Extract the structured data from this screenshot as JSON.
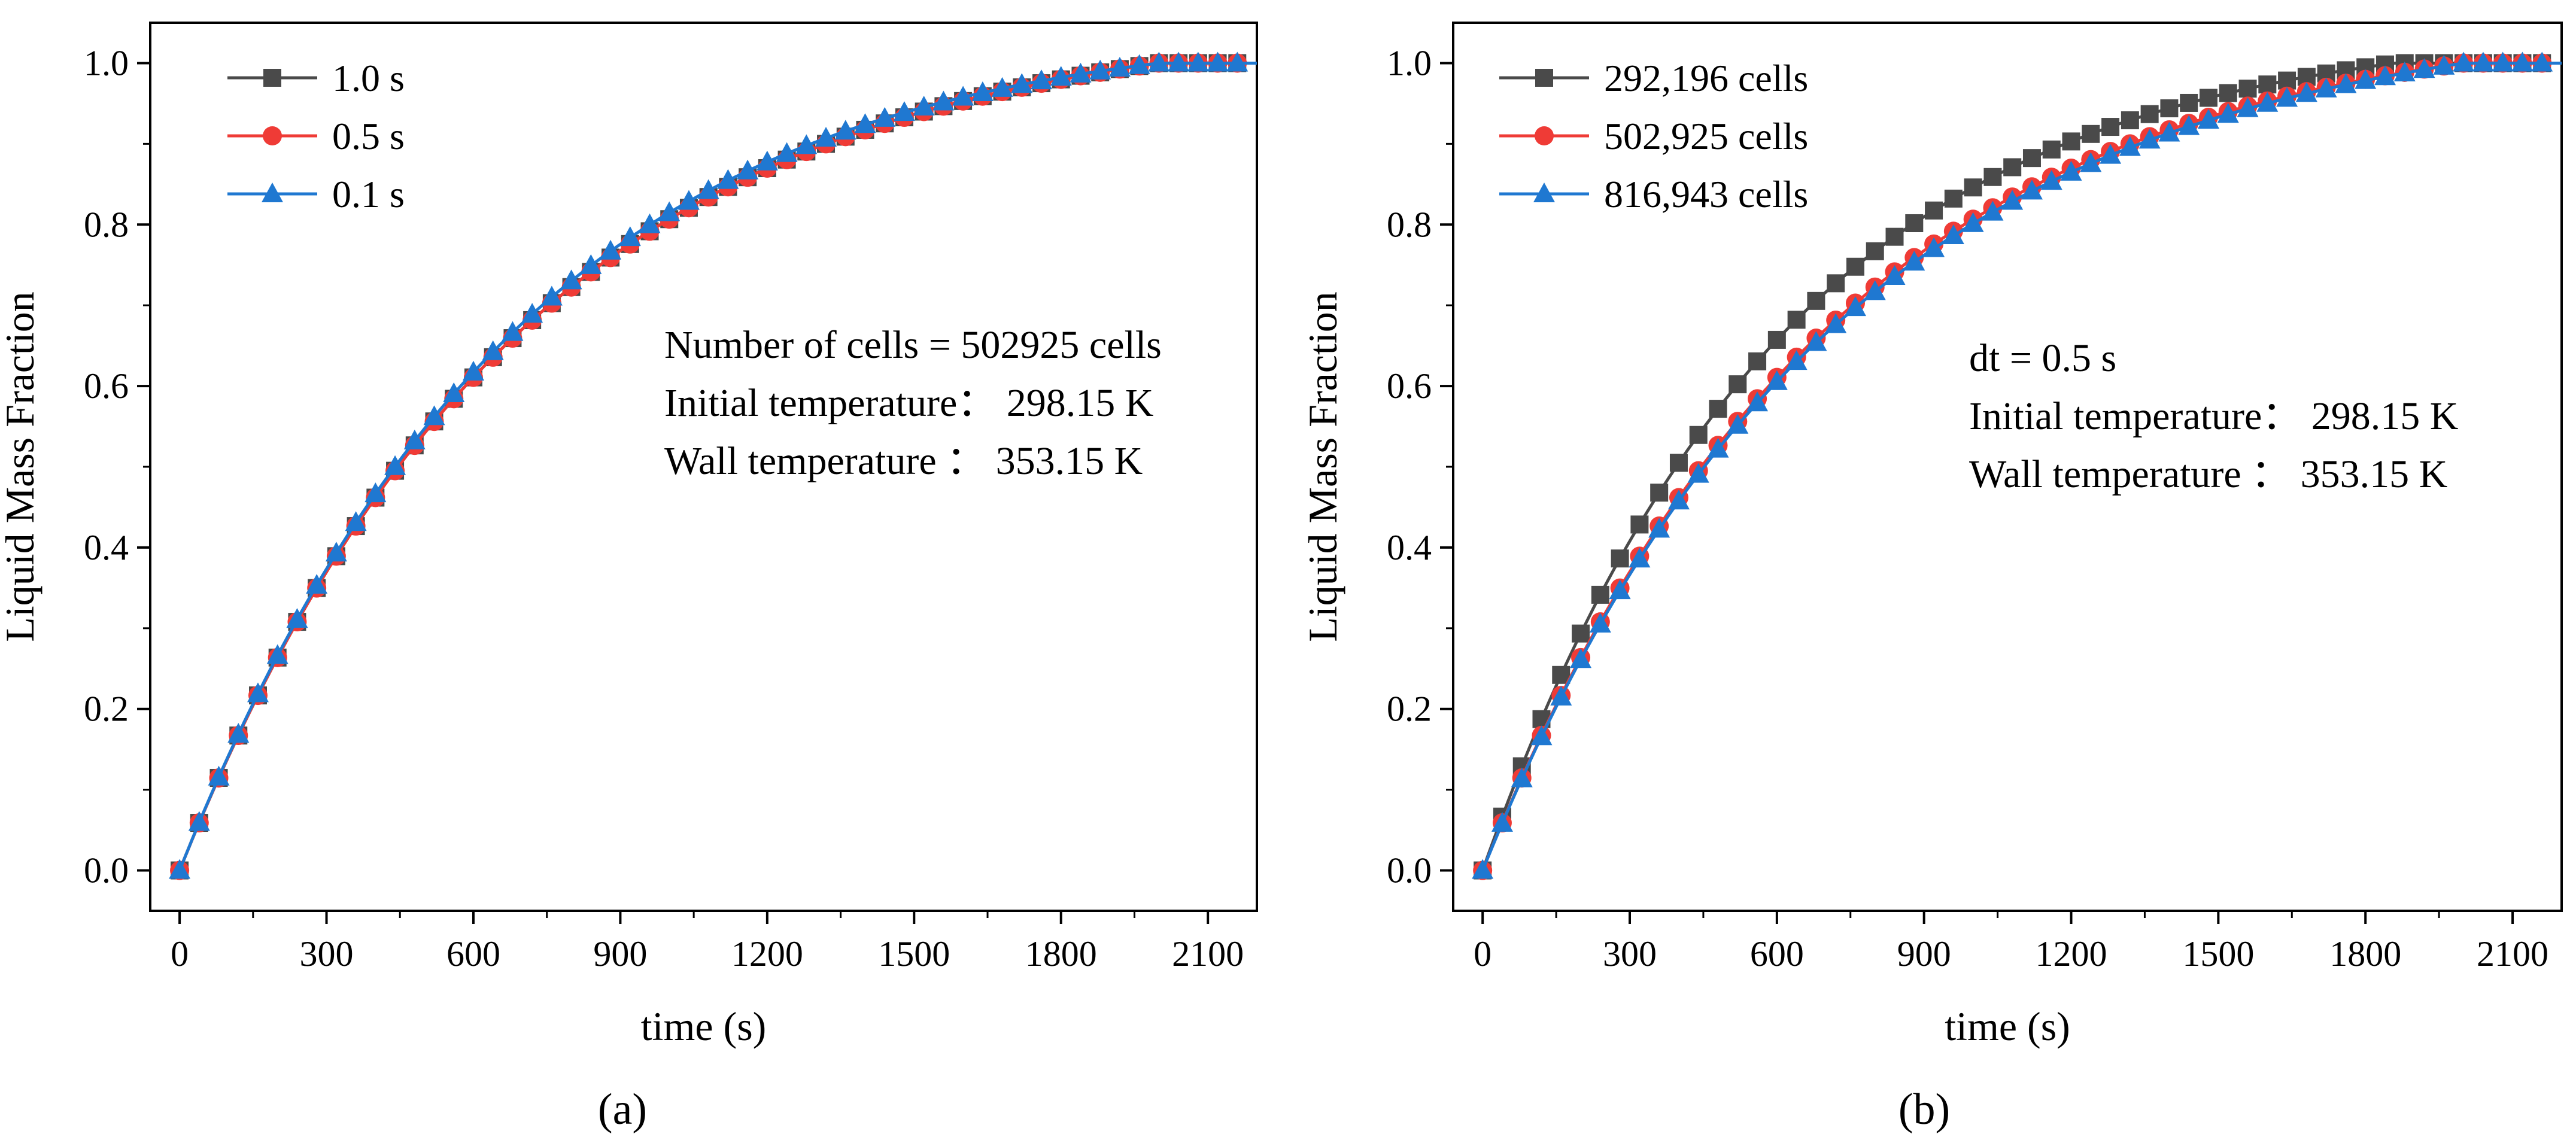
{
  "chart_data": [
    {
      "type": "line",
      "panel_label": "(a)",
      "xlabel": "time (s)",
      "ylabel": "Liquid Mass Fraction",
      "xlim": [
        -60,
        2200
      ],
      "ylim": [
        -0.05,
        1.05
      ],
      "xticks": [
        "0",
        "300",
        "600",
        "900",
        "1200",
        "1500",
        "1800",
        "2100"
      ],
      "yticks": [
        "0.0",
        "0.2",
        "0.4",
        "0.6",
        "0.8",
        "1.0"
      ],
      "legend_position": "top-left",
      "annotations": [
        "Number of cells = 502925 cells",
        "Initial temperature：  298.15 K",
        "Wall temperature ：  353.15 K"
      ],
      "series": [
        {
          "name": "1.0 s",
          "color": "#4a4a4a",
          "marker": "square",
          "tau": 700,
          "end": 2000,
          "offset": 0.0
        },
        {
          "name": "0.5 s",
          "color": "#ef3b36",
          "marker": "circle",
          "tau": 700,
          "end": 2000,
          "offset": 0.0
        },
        {
          "name": "0.1 s",
          "color": "#1f78d1",
          "marker": "triangle",
          "tau": 700,
          "end": 2000,
          "offset": 0.008
        }
      ]
    },
    {
      "type": "line",
      "panel_label": "(b)",
      "xlabel": "time (s)",
      "ylabel": "Liquid Mass Fraction",
      "xlim": [
        -60,
        2200
      ],
      "ylim": [
        -0.05,
        1.05
      ],
      "xticks": [
        "0",
        "300",
        "600",
        "900",
        "1200",
        "1500",
        "1800",
        "2100"
      ],
      "yticks": [
        "0.0",
        "0.2",
        "0.4",
        "0.6",
        "0.8",
        "1.0"
      ],
      "legend_position": "top-left",
      "annotations": [
        "dt = 0.5 s",
        "Initial temperature：  298.15 K",
        "Wall temperature ：  353.15 K"
      ],
      "series": [
        {
          "name": "292,196 cells",
          "color": "#4a4a4a",
          "marker": "square",
          "tau": 610,
          "end": 1860,
          "offset": 0.0
        },
        {
          "name": "502,925 cells",
          "color": "#ef3b36",
          "marker": "circle",
          "tau": 700,
          "end": 2000,
          "offset": 0.0
        },
        {
          "name": "816,943 cells",
          "color": "#1f78d1",
          "marker": "triangle",
          "tau": 705,
          "end": 2000,
          "offset": -0.004
        }
      ]
    }
  ]
}
